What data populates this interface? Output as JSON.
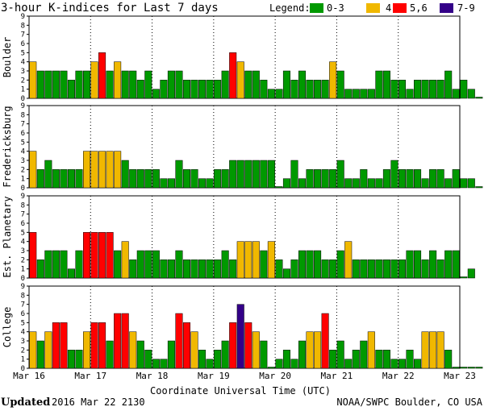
{
  "chart_data": {
    "type": "bar",
    "title": "3-hour K-indices for Last 7 days",
    "legend": {
      "label": "Legend:",
      "items": [
        {
          "label": "0-3",
          "color": "#009900"
        },
        {
          "label": "4",
          "color": "#f0b800"
        },
        {
          "label": "5,6",
          "color": "#ff0000"
        },
        {
          "label": "7-9",
          "color": "#330088"
        }
      ]
    },
    "x_ticks": [
      "Mar 16",
      "Mar 17",
      "Mar 18",
      "Mar 19",
      "Mar 20",
      "Mar 21",
      "Mar 22",
      "Mar 23"
    ],
    "xlabel": "Coordinate Universal Time (UTC)",
    "ylim": [
      0,
      9
    ],
    "y_ticks": [
      "0",
      "1",
      "2",
      "3",
      "4",
      "5",
      "6",
      "7",
      "8",
      "9"
    ],
    "bars_per_day": 8,
    "panels": [
      {
        "ylabel": "Boulder",
        "values": [
          4,
          3,
          3,
          3,
          3,
          2,
          3,
          3,
          4,
          5,
          3,
          4,
          3,
          3,
          2,
          3,
          1,
          2,
          3,
          3,
          2,
          2,
          2,
          2,
          2,
          3,
          5,
          4,
          3,
          3,
          2,
          1,
          1,
          3,
          2,
          3,
          2,
          2,
          2,
          4,
          3,
          1,
          1,
          1,
          1,
          3,
          3,
          2,
          2,
          1,
          2,
          2,
          2,
          2,
          3,
          1,
          2,
          1,
          0
        ]
      },
      {
        "ylabel": "Fredericksburg",
        "values": [
          4,
          2,
          3,
          2,
          2,
          2,
          2,
          4,
          4,
          4,
          4,
          4,
          3,
          2,
          2,
          2,
          2,
          1,
          1,
          3,
          2,
          2,
          1,
          1,
          2,
          2,
          3,
          3,
          3,
          3,
          3,
          3,
          0,
          1,
          3,
          1,
          2,
          2,
          2,
          2,
          3,
          1,
          1,
          2,
          1,
          1,
          2,
          3,
          2,
          2,
          2,
          1,
          2,
          2,
          1,
          2,
          1,
          1,
          0
        ]
      },
      {
        "ylabel": "Est. Planetary",
        "values": [
          5,
          2,
          3,
          3,
          3,
          1,
          3,
          5,
          5,
          5,
          5,
          3,
          4,
          2,
          3,
          3,
          3,
          2,
          2,
          3,
          2,
          2,
          2,
          2,
          2,
          3,
          2,
          4,
          4,
          4,
          3,
          4,
          2,
          1,
          2,
          3,
          3,
          3,
          2,
          2,
          3,
          4,
          2,
          2,
          2,
          2,
          2,
          2,
          2,
          3,
          3,
          2,
          3,
          2,
          3,
          3,
          0,
          1
        ]
      },
      {
        "ylabel": "College",
        "values": [
          4,
          3,
          4,
          5,
          5,
          2,
          2,
          4,
          5,
          5,
          3,
          6,
          6,
          4,
          3,
          2,
          1,
          1,
          3,
          6,
          5,
          4,
          2,
          1,
          2,
          3,
          5,
          7,
          5,
          4,
          3,
          0,
          1,
          2,
          1,
          3,
          4,
          4,
          6,
          2,
          3,
          1,
          2,
          3,
          4,
          2,
          2,
          1,
          1,
          2,
          1,
          4,
          4,
          4,
          2,
          0,
          0,
          0,
          0
        ]
      }
    ]
  },
  "footer": {
    "updated_label": "Updated",
    "updated_value": "2016 Mar 22 2130",
    "source": "NOAA/SWPC Boulder, CO USA"
  }
}
